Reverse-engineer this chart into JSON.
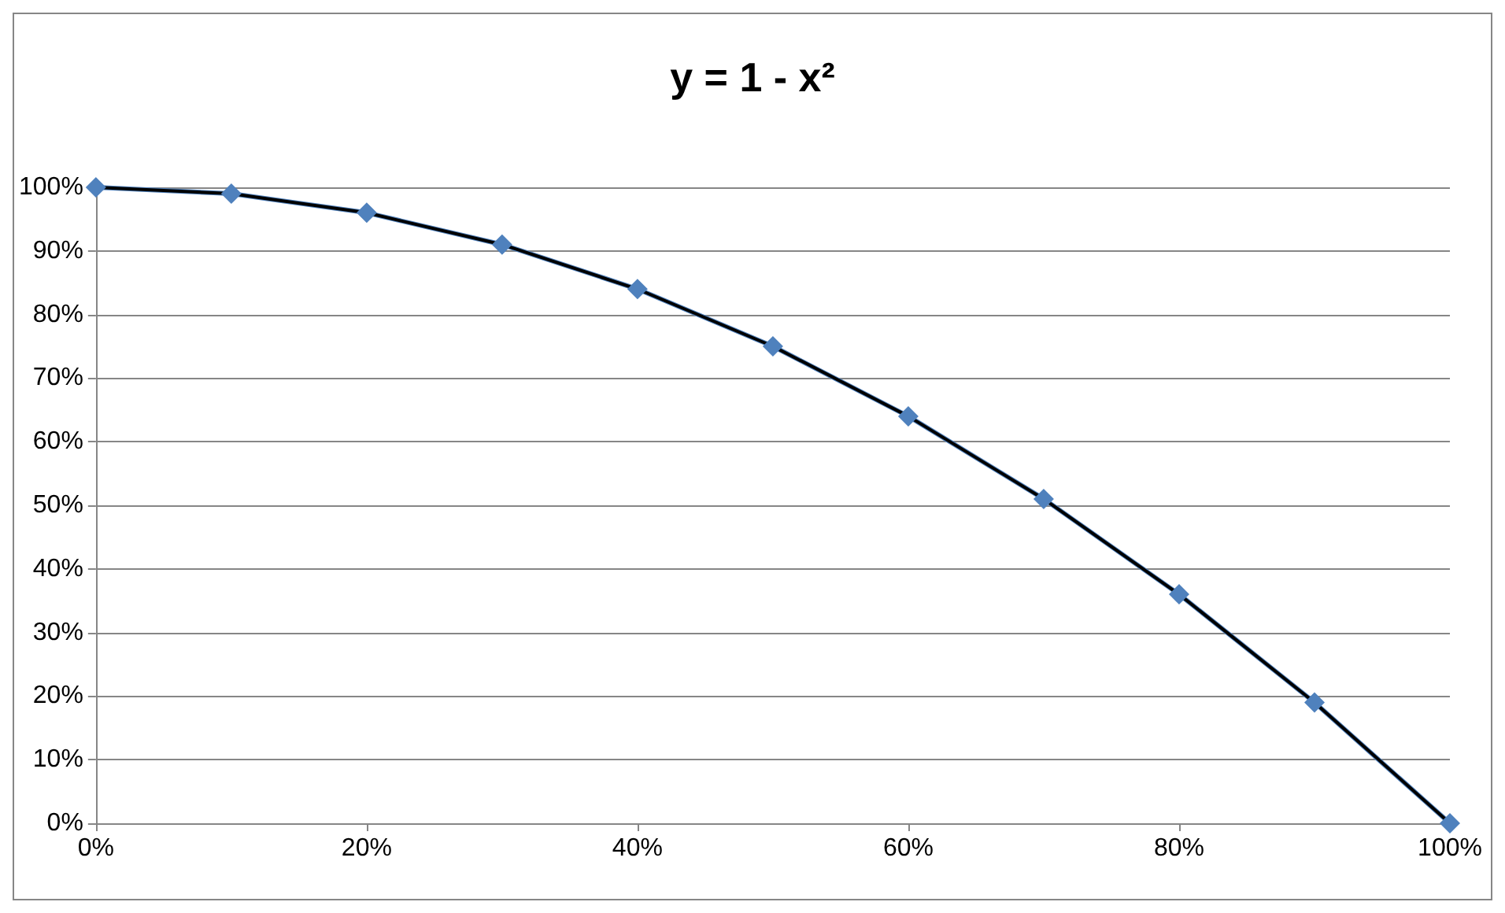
{
  "chart_data": {
    "type": "line",
    "title": "y = 1 - x²",
    "x": [
      0,
      10,
      20,
      30,
      40,
      50,
      60,
      70,
      80,
      90,
      100
    ],
    "series": [
      {
        "color": "#4f81bd",
        "marker": "diamond",
        "values": [
          100,
          99,
          96,
          91,
          84,
          75,
          64,
          51,
          36,
          19,
          0
        ]
      },
      {
        "color": "#000000",
        "marker": "none",
        "values": [
          100,
          99,
          96,
          91,
          84,
          75,
          64,
          51,
          36,
          19,
          0
        ]
      }
    ],
    "xlim": [
      0,
      100
    ],
    "xticks": [
      {
        "value": 0,
        "label": "0%"
      },
      {
        "value": 20,
        "label": "20%"
      },
      {
        "value": 40,
        "label": "40%"
      },
      {
        "value": 60,
        "label": "60%"
      },
      {
        "value": 80,
        "label": "80%"
      },
      {
        "value": 100,
        "label": "100%"
      }
    ],
    "ylim": [
      0,
      100
    ],
    "yticks": [
      {
        "value": 0,
        "label": "0%"
      },
      {
        "value": 10,
        "label": "10%"
      },
      {
        "value": 20,
        "label": "20%"
      },
      {
        "value": 30,
        "label": "30%"
      },
      {
        "value": 40,
        "label": "40%"
      },
      {
        "value": 50,
        "label": "50%"
      },
      {
        "value": 60,
        "label": "60%"
      },
      {
        "value": 70,
        "label": "70%"
      },
      {
        "value": 80,
        "label": "80%"
      },
      {
        "value": 90,
        "label": "90%"
      },
      {
        "value": 100,
        "label": "100%"
      }
    ],
    "grid": "y"
  }
}
